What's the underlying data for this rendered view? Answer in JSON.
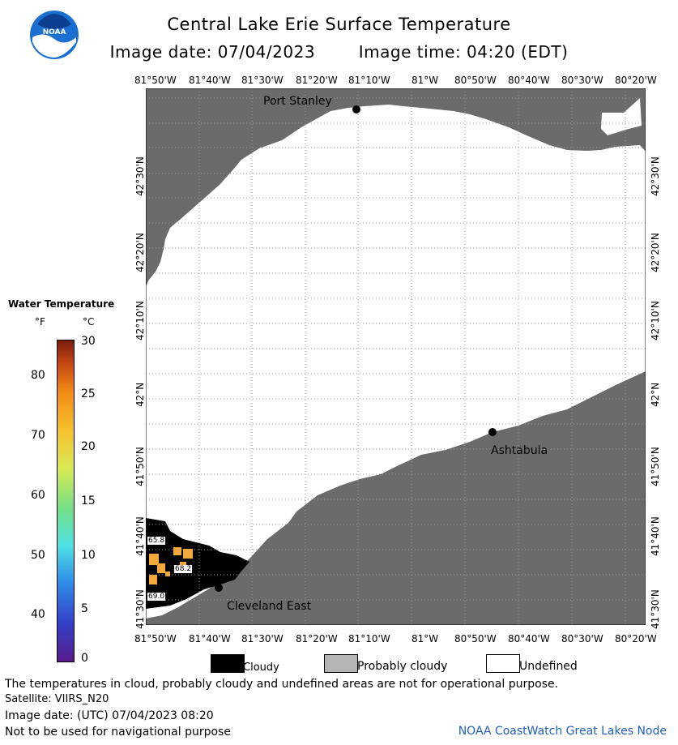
{
  "header": {
    "title": "Central Lake Erie Surface Temperature",
    "image_date": "Image date: 07/04/2023",
    "image_time": "Image time: 04:20 (EDT)"
  },
  "logo": {
    "text": "NOAA",
    "icon": "noaa-logo"
  },
  "map": {
    "lon_labels": [
      "81°50'W",
      "81°40'W",
      "81°30'W",
      "81°20'W",
      "81°10'W",
      "81°W",
      "80°50'W",
      "80°40'W",
      "80°30'W",
      "80°20'W"
    ],
    "lat_labels": [
      "42°30'N",
      "42°20'N",
      "42°10'N",
      "42°N",
      "41°50'N",
      "41°40'N",
      "41°30'N"
    ],
    "places": [
      {
        "name": "Port Stanley"
      },
      {
        "name": "Ashtabula"
      },
      {
        "name": "Cleveland East"
      }
    ],
    "temps": [
      "65.8",
      "68.2",
      "69.0"
    ],
    "colors": {
      "land": "#6b6b6b",
      "cloud": "#000000",
      "undefined": "#ffffff",
      "warm": "#f5a93a"
    }
  },
  "legend": {
    "title": "Water Temperature",
    "unit_f": "°F",
    "unit_c": "°C",
    "f_ticks": [
      "80",
      "70",
      "60",
      "50",
      "40"
    ],
    "c_ticks": [
      "30",
      "25",
      "20",
      "15",
      "10",
      "5",
      "0"
    ]
  },
  "key": {
    "cloudy": "Cloudy",
    "probably_cloudy": "Probably cloudy",
    "undefined": "Undefined"
  },
  "footer": {
    "disclaimer": "The temperatures in cloud, probably cloudy and undefined areas are not for operational purpose.",
    "satellite": "Satellite: VIIRS_N20",
    "utc_date": "Image date: (UTC) 07/04/2023  08:20",
    "nav_warning": "Not to be used for navigational purpose",
    "credit": "NOAA CoastWatch Great Lakes Node"
  }
}
